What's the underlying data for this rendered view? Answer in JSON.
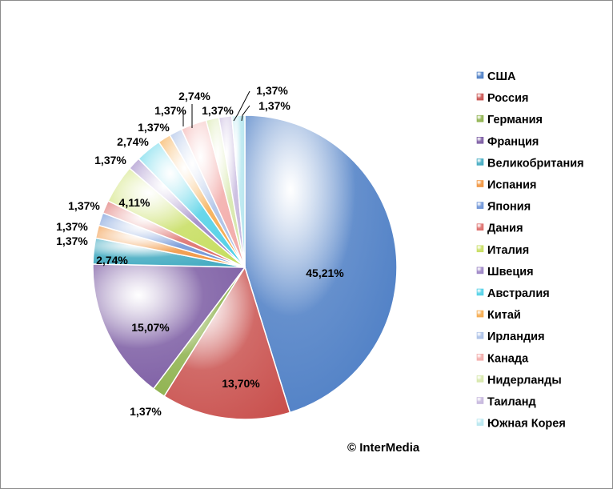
{
  "chart_data": {
    "type": "pie",
    "title": "",
    "legend_position": "right",
    "source_note": "© InterMedia",
    "slices": [
      {
        "name": "США",
        "value": 45.21,
        "label": "45,21%",
        "color": "#4a7cc4"
      },
      {
        "name": "Россия",
        "value": 13.7,
        "label": "13,70%",
        "color": "#c9504d"
      },
      {
        "name": "Германия",
        "value": 1.37,
        "label": "1,37%",
        "color": "#8cb04a"
      },
      {
        "name": "Франция",
        "value": 15.07,
        "label": "15,07%",
        "color": "#7a5aa2"
      },
      {
        "name": "Великобритания",
        "value": 2.74,
        "label": "2,74%",
        "color": "#3fa9c0"
      },
      {
        "name": "Испания",
        "value": 1.37,
        "label": "1,37%",
        "color": "#f0923a"
      },
      {
        "name": "Япония",
        "value": 1.37,
        "label": "1,37%",
        "color": "#6b92d6"
      },
      {
        "name": "Дания",
        "value": 1.37,
        "label": "1,37%",
        "color": "#dc6a67"
      },
      {
        "name": "Италия",
        "value": 4.11,
        "label": "4,11%",
        "color": "#c6dd5e"
      },
      {
        "name": "Швеция",
        "value": 1.37,
        "label": "1,37%",
        "color": "#9a82c4"
      },
      {
        "name": "Австралия",
        "value": 2.74,
        "label": "2,74%",
        "color": "#4fd0e6"
      },
      {
        "name": "Китай",
        "value": 1.37,
        "label": "1,37%",
        "color": "#f5a94a"
      },
      {
        "name": "Ирландия",
        "value": 1.37,
        "label": "1,37%",
        "color": "#a9bfe6"
      },
      {
        "name": "Канада",
        "value": 2.74,
        "label": "2,74%",
        "color": "#f2aaa8"
      },
      {
        "name": "Нидерланды",
        "value": 1.37,
        "label": "1,37%",
        "color": "#d5e6a8"
      },
      {
        "name": "Таиланд",
        "value": 1.37,
        "label": "1,37%",
        "color": "#c5b6dd"
      },
      {
        "name": "Южная Корея",
        "value": 1.37,
        "label": "1,37%",
        "color": "#b6e6ef"
      }
    ]
  }
}
